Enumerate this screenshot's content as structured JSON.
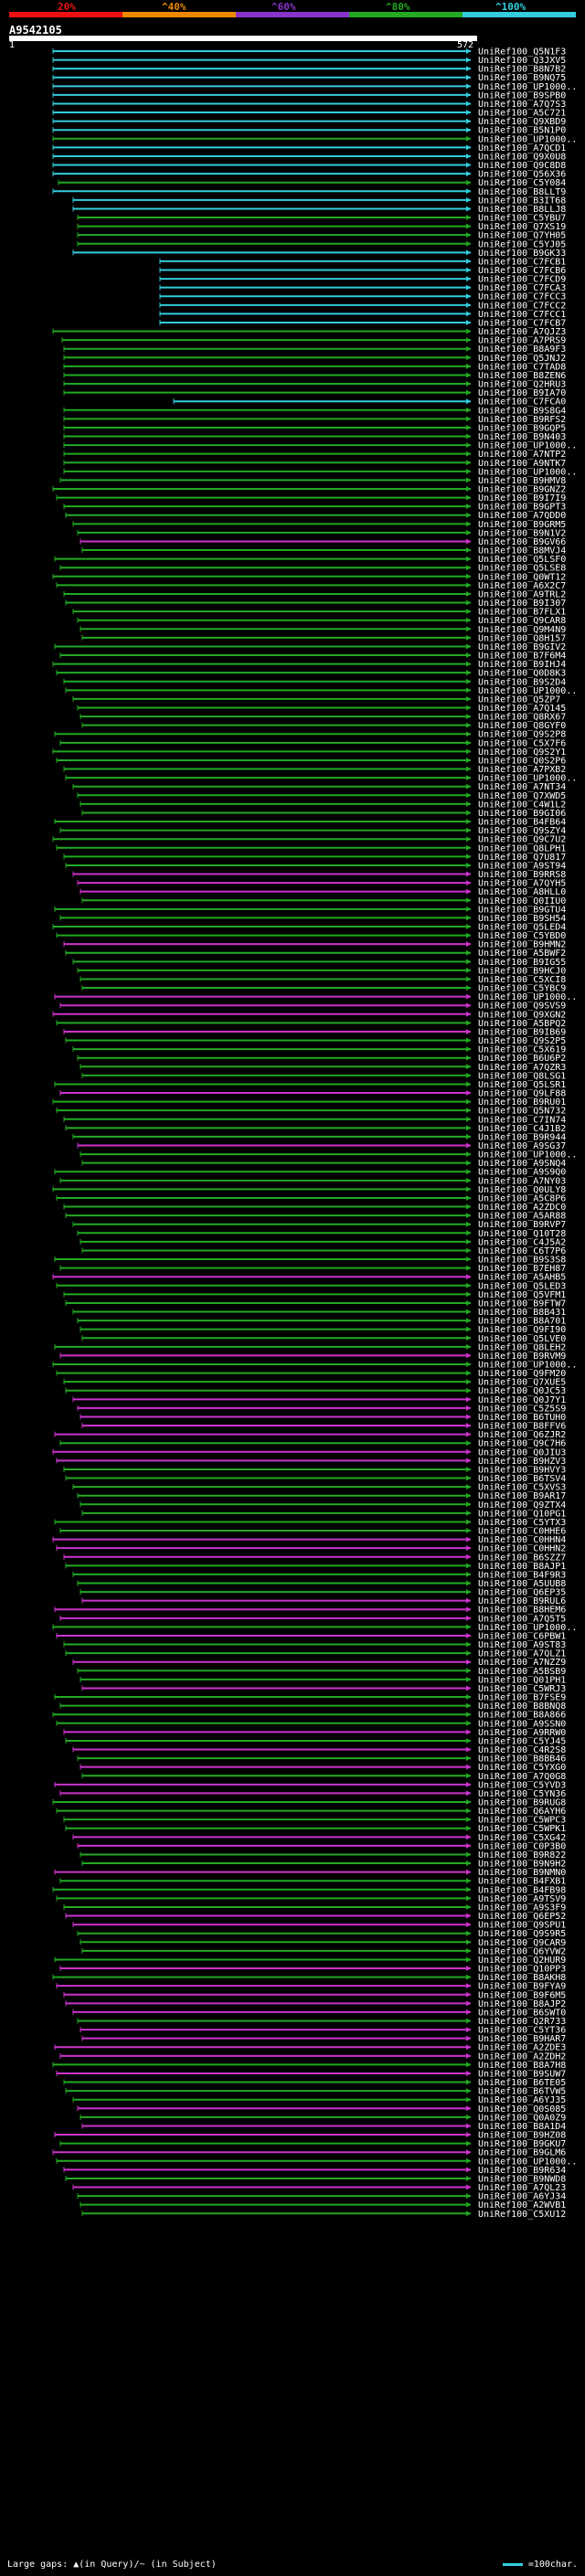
{
  "legend": {
    "labels": [
      "20%",
      "^40%",
      "^60%",
      "^80%",
      "^100%"
    ],
    "colors": [
      "#ee1111",
      "#ee8800",
      "#8833cc",
      "#22aa22",
      "#33ccdd"
    ]
  },
  "query": {
    "id": "A9542105",
    "start": "1",
    "end": "572"
  },
  "footer": {
    "left": "Large gaps: ▲(in Query)/~ (in Subject)",
    "right": "=100char."
  },
  "hit_colors": {
    "c": "#33ccdd",
    "g": "#22aa22",
    "m": "#cc33cc"
  },
  "hits": [
    {
      "label": "UniRef100_Q5N1F3",
      "color": "c"
    },
    {
      "label": "UniRef100_Q3JXV5",
      "color": "c"
    },
    {
      "label": "UniRef100_B8N7B2",
      "color": "c"
    },
    {
      "label": "UniRef100_B9NQ75",
      "color": "c"
    },
    {
      "label": "UniRef100_UP1000..",
      "color": "c"
    },
    {
      "label": "UniRef100_B9SPB0",
      "color": "c"
    },
    {
      "label": "UniRef100_A7Q7S3",
      "color": "c"
    },
    {
      "label": "UniRef100_A5C721",
      "color": "c"
    },
    {
      "label": "UniRef100_Q9XBD9",
      "color": "c"
    },
    {
      "label": "UniRef100_B5N1P0",
      "color": "c"
    },
    {
      "label": "UniRef100_UP1000..",
      "color": "g"
    },
    {
      "label": "UniRef100_A7QCD1",
      "color": "c"
    },
    {
      "label": "UniRef100_Q9X0U8",
      "color": "c"
    },
    {
      "label": "UniRef100_Q9C8D8",
      "color": "c"
    },
    {
      "label": "UniRef100_Q56X36",
      "color": "c"
    },
    {
      "label": "UniRef100_C5Y084",
      "color": "g"
    },
    {
      "label": "UniRef100_B8LLT9",
      "color": "c"
    },
    {
      "label": "UniRef100_B3IT68",
      "color": "c"
    },
    {
      "label": "UniRef100_B8LLJ8",
      "color": "c"
    },
    {
      "label": "UniRef100_C5YBU7",
      "color": "g"
    },
    {
      "label": "UniRef100_Q7XS19",
      "color": "g"
    },
    {
      "label": "UniRef100_Q7YH05",
      "color": "g"
    },
    {
      "label": "UniRef100_C5YJ05",
      "color": "g"
    },
    {
      "label": "UniRef100_B9GK33",
      "color": "c"
    },
    {
      "label": "UniRef100_C7FCB1",
      "color": "c"
    },
    {
      "label": "UniRef100_C7FCB6",
      "color": "c"
    },
    {
      "label": "UniRef100_C7FCD9",
      "color": "c"
    },
    {
      "label": "UniRef100_C7FCA3",
      "color": "c"
    },
    {
      "label": "UniRef100_C7FCC3",
      "color": "c"
    },
    {
      "label": "UniRef100_C7FCC2",
      "color": "c"
    },
    {
      "label": "UniRef100_C7FCC1",
      "color": "c"
    },
    {
      "label": "UniRef100_C7FCB7",
      "color": "c"
    },
    {
      "label": "UniRef100_A7QJZ3",
      "color": "g"
    },
    {
      "label": "UniRef100_A7PRS9",
      "color": "g"
    },
    {
      "label": "UniRef100_B8A9F3",
      "color": "g"
    },
    {
      "label": "UniRef100_Q5JNJ2",
      "color": "g"
    },
    {
      "label": "UniRef100_C7TAD8",
      "color": "g"
    },
    {
      "label": "UniRef100_B8ZEN6",
      "color": "g"
    },
    {
      "label": "UniRef100_Q2HRU3",
      "color": "g"
    },
    {
      "label": "UniRef100_B9IA70",
      "color": "g"
    },
    {
      "label": "UniRef100_C7FCA0",
      "color": "c"
    },
    {
      "label": "UniRef100_B9S8G4",
      "color": "g"
    },
    {
      "label": "UniRef100_B9RFS2",
      "color": "g"
    },
    {
      "label": "UniRef100_B9GQP5",
      "color": "g"
    },
    {
      "label": "UniRef100_B9N403",
      "color": "g"
    },
    {
      "label": "UniRef100_UP1000..",
      "color": "g"
    },
    {
      "label": "UniRef100_A7NTP2",
      "color": "g"
    },
    {
      "label": "UniRef100_A9NTK7",
      "color": "g"
    },
    {
      "label": "UniRef100_UP1000..",
      "color": "g"
    },
    {
      "label": "UniRef100_B9HMV8",
      "color": "g"
    },
    {
      "label": "UniRef100_B9GNZ2",
      "color": "g"
    },
    {
      "label": "UniRef100_B9I7I9",
      "color": "g"
    },
    {
      "label": "UniRef100_B9GPT3",
      "color": "g"
    },
    {
      "label": "UniRef100_A7QDD0",
      "color": "g"
    },
    {
      "label": "UniRef100_B9GRM5",
      "color": "g"
    },
    {
      "label": "UniRef100_B9N1V2",
      "color": "g"
    },
    {
      "label": "UniRef100_B9GV66",
      "color": "m"
    },
    {
      "label": "UniRef100_B8MVJ4",
      "color": "g"
    },
    {
      "label": "UniRef100_Q5LSF0",
      "color": "g"
    },
    {
      "label": "UniRef100_Q5LSE8",
      "color": "g"
    },
    {
      "label": "UniRef100_Q0WT12",
      "color": "g"
    },
    {
      "label": "UniRef100_A6X2C7",
      "color": "g"
    },
    {
      "label": "UniRef100_A9TRL2",
      "color": "g"
    },
    {
      "label": "UniRef100_B9I307",
      "color": "g"
    },
    {
      "label": "UniRef100_B7FLX1",
      "color": "g"
    },
    {
      "label": "UniRef100_Q9CAR8",
      "color": "g"
    },
    {
      "label": "UniRef100_Q9M4N9",
      "color": "g"
    },
    {
      "label": "UniRef100_Q8H157",
      "color": "g"
    },
    {
      "label": "UniRef100_B9GIV2",
      "color": "g"
    },
    {
      "label": "UniRef100_B7F6M4",
      "color": "g"
    },
    {
      "label": "UniRef100_B9IHJ4",
      "color": "g"
    },
    {
      "label": "UniRef100_Q0D8K3",
      "color": "g"
    },
    {
      "label": "UniRef100_B9S2D4",
      "color": "g"
    },
    {
      "label": "UniRef100_UP1000..",
      "color": "g"
    },
    {
      "label": "UniRef100_Q5ZP7",
      "color": "g"
    },
    {
      "label": "UniRef100_A7Q145",
      "color": "g"
    },
    {
      "label": "UniRef100_Q8RX67",
      "color": "g"
    },
    {
      "label": "UniRef100_Q8GYF0",
      "color": "g"
    },
    {
      "label": "UniRef100_Q9S2P8",
      "color": "g"
    },
    {
      "label": "UniRef100_C5X7F6",
      "color": "g"
    },
    {
      "label": "UniRef100_Q9S2Y1",
      "color": "g"
    },
    {
      "label": "UniRef100_Q0S2P6",
      "color": "g"
    },
    {
      "label": "UniRef100_A7PXB2",
      "color": "g"
    },
    {
      "label": "UniRef100_UP1000..",
      "color": "g"
    },
    {
      "label": "UniRef100_A7NT34",
      "color": "g"
    },
    {
      "label": "UniRef100_Q7XWD5",
      "color": "g"
    },
    {
      "label": "UniRef100_C4W1L2",
      "color": "g"
    },
    {
      "label": "UniRef100_B9GI06",
      "color": "g"
    },
    {
      "label": "UniRef100_B4FB64",
      "color": "g"
    },
    {
      "label": "UniRef100_Q9SZY4",
      "color": "g"
    },
    {
      "label": "UniRef100_Q9C7U2",
      "color": "g"
    },
    {
      "label": "UniRef100_Q8LPH1",
      "color": "g"
    },
    {
      "label": "UniRef100_Q7U817",
      "color": "g"
    },
    {
      "label": "UniRef100_A9ST94",
      "color": "g"
    },
    {
      "label": "UniRef100_B9RRS8",
      "color": "m"
    },
    {
      "label": "UniRef100_A7QYH5",
      "color": "m"
    },
    {
      "label": "UniRef100_A8HLL0",
      "color": "m"
    },
    {
      "label": "UniRef100_Q0IIU0",
      "color": "g"
    },
    {
      "label": "UniRef100_B9GTU4",
      "color": "g"
    },
    {
      "label": "UniRef100_B9SH54",
      "color": "g"
    },
    {
      "label": "UniRef100_Q5LED4",
      "color": "g"
    },
    {
      "label": "UniRef100_C5YBD0",
      "color": "g"
    },
    {
      "label": "UniRef100_B9HMN2",
      "color": "m"
    },
    {
      "label": "UniRef100_A5BWF2",
      "color": "g"
    },
    {
      "label": "UniRef100_B9IG55",
      "color": "g"
    },
    {
      "label": "UniRef100_B9HCJ0",
      "color": "g"
    },
    {
      "label": "UniRef100_C5XCI8",
      "color": "g"
    },
    {
      "label": "UniRef100_C5YBC9",
      "color": "g"
    },
    {
      "label": "UniRef100_UP1000..",
      "color": "m"
    },
    {
      "label": "UniRef100_Q9SVS9",
      "color": "m"
    },
    {
      "label": "UniRef100_Q9XGN2",
      "color": "m"
    },
    {
      "label": "UniRef100_A5BPQ2",
      "color": "g"
    },
    {
      "label": "UniRef100_B9IB69",
      "color": "m"
    },
    {
      "label": "UniRef100_Q9S2P5",
      "color": "g"
    },
    {
      "label": "UniRef100_C5X619",
      "color": "g"
    },
    {
      "label": "UniRef100_B6U6P2",
      "color": "g"
    },
    {
      "label": "UniRef100_A7QZR3",
      "color": "g"
    },
    {
      "label": "UniRef100_Q8LSG1",
      "color": "g"
    },
    {
      "label": "UniRef100_Q5LSR1",
      "color": "g"
    },
    {
      "label": "UniRef100_Q9LF88",
      "color": "m"
    },
    {
      "label": "UniRef100_B9RU01",
      "color": "g"
    },
    {
      "label": "UniRef100_Q5N732",
      "color": "g"
    },
    {
      "label": "UniRef100_C7IN74",
      "color": "g"
    },
    {
      "label": "UniRef100_C4J1B2",
      "color": "g"
    },
    {
      "label": "UniRef100_B9R944",
      "color": "g"
    },
    {
      "label": "UniRef100_A9SG37",
      "color": "m"
    },
    {
      "label": "UniRef100_UP1000..",
      "color": "g"
    },
    {
      "label": "UniRef100_A9SNQ4",
      "color": "g"
    },
    {
      "label": "UniRef100_A9S9Q0",
      "color": "g"
    },
    {
      "label": "UniRef100_A7NY03",
      "color": "g"
    },
    {
      "label": "UniRef100_Q0ULY8",
      "color": "g"
    },
    {
      "label": "UniRef100_A5C8P6",
      "color": "g"
    },
    {
      "label": "UniRef100_A2ZDC0",
      "color": "g"
    },
    {
      "label": "UniRef100_A5AR88",
      "color": "g"
    },
    {
      "label": "UniRef100_B9RVP7",
      "color": "g"
    },
    {
      "label": "UniRef100_Q10T28",
      "color": "g"
    },
    {
      "label": "UniRef100_C4J5A2",
      "color": "g"
    },
    {
      "label": "UniRef100_C6T7P6",
      "color": "g"
    },
    {
      "label": "UniRef100_B9S3S8",
      "color": "g"
    },
    {
      "label": "UniRef100_B7EH87",
      "color": "g"
    },
    {
      "label": "UniRef100_A5AHB5",
      "color": "m"
    },
    {
      "label": "UniRef100_Q5LED3",
      "color": "g"
    },
    {
      "label": "UniRef100_Q5VFM1",
      "color": "g"
    },
    {
      "label": "UniRef100_B9FTW7",
      "color": "g"
    },
    {
      "label": "UniRef100_B8B431",
      "color": "g"
    },
    {
      "label": "UniRef100_B8A701",
      "color": "g"
    },
    {
      "label": "UniRef100_Q9FI90",
      "color": "g"
    },
    {
      "label": "UniRef100_Q5LVE0",
      "color": "g"
    },
    {
      "label": "UniRef100_Q8LEH2",
      "color": "g"
    },
    {
      "label": "UniRef100_B9RVM9",
      "color": "m"
    },
    {
      "label": "UniRef100_UP1000..",
      "color": "g"
    },
    {
      "label": "UniRef100_Q9FM20",
      "color": "g"
    },
    {
      "label": "UniRef100_Q7XUE5",
      "color": "g"
    },
    {
      "label": "UniRef100_Q0JC53",
      "color": "g"
    },
    {
      "label": "UniRef100_Q0J7Y1",
      "color": "m"
    },
    {
      "label": "UniRef100_C5Z5S9",
      "color": "m"
    },
    {
      "label": "UniRef100_B6TUH0",
      "color": "m"
    },
    {
      "label": "UniRef100_B8FFV6",
      "color": "m"
    },
    {
      "label": "UniRef100_Q6ZJR2",
      "color": "m"
    },
    {
      "label": "UniRef100_Q9C7H6",
      "color": "g"
    },
    {
      "label": "UniRef100_Q0JIU3",
      "color": "m"
    },
    {
      "label": "UniRef100_B9HZV3",
      "color": "m"
    },
    {
      "label": "UniRef100_B9HVY3",
      "color": "g"
    },
    {
      "label": "UniRef100_B6TSV4",
      "color": "g"
    },
    {
      "label": "UniRef100_C5XVS3",
      "color": "g"
    },
    {
      "label": "UniRef100_B9AR17",
      "color": "g"
    },
    {
      "label": "UniRef100_Q9ZTX4",
      "color": "g"
    },
    {
      "label": "UniRef100_Q10PG1",
      "color": "g"
    },
    {
      "label": "UniRef100_C5YTX3",
      "color": "g"
    },
    {
      "label": "UniRef100_C0HHE6",
      "color": "g"
    },
    {
      "label": "UniRef100_C0HHN4",
      "color": "m"
    },
    {
      "label": "UniRef100_C0HHN2",
      "color": "m"
    },
    {
      "label": "UniRef100_B6SZZ7",
      "color": "m"
    },
    {
      "label": "UniRef100_B8AJP1",
      "color": "g"
    },
    {
      "label": "UniRef100_B4F9R3",
      "color": "g"
    },
    {
      "label": "UniRef100_A5UUB8",
      "color": "g"
    },
    {
      "label": "UniRef100_Q6EP35",
      "color": "g"
    },
    {
      "label": "UniRef100_B9RUL6",
      "color": "m"
    },
    {
      "label": "UniRef100_B8HEM6",
      "color": "m"
    },
    {
      "label": "UniRef100_A7Q5T5",
      "color": "m"
    },
    {
      "label": "UniRef100_UP1000..",
      "color": "g"
    },
    {
      "label": "UniRef100_C6PBW1",
      "color": "m"
    },
    {
      "label": "UniRef100_A9ST83",
      "color": "g"
    },
    {
      "label": "UniRef100_A7QLZ1",
      "color": "g"
    },
    {
      "label": "UniRef100_A7NZZ9",
      "color": "m"
    },
    {
      "label": "UniRef100_A5BSB9",
      "color": "g"
    },
    {
      "label": "UniRef100_Q01PH1",
      "color": "g"
    },
    {
      "label": "UniRef100_C5WRJ3",
      "color": "m"
    },
    {
      "label": "UniRef100_B7FSE9",
      "color": "g"
    },
    {
      "label": "UniRef100_B8BNQ8",
      "color": "g"
    },
    {
      "label": "UniRef100_B8A866",
      "color": "g"
    },
    {
      "label": "UniRef100_A9SSN0",
      "color": "g"
    },
    {
      "label": "UniRef100_A9RRW0",
      "color": "m"
    },
    {
      "label": "UniRef100_C5YJ45",
      "color": "g"
    },
    {
      "label": "UniRef100_C4R2S8",
      "color": "m"
    },
    {
      "label": "UniRef100_B8BB46",
      "color": "g"
    },
    {
      "label": "UniRef100_C5YXG0",
      "color": "m"
    },
    {
      "label": "UniRef100_A7Q0G8",
      "color": "g"
    },
    {
      "label": "UniRef100_C5YVD3",
      "color": "m"
    },
    {
      "label": "UniRef100_C5YN36",
      "color": "m"
    },
    {
      "label": "UniRef100_B9RUG8",
      "color": "g"
    },
    {
      "label": "UniRef100_Q6AYH6",
      "color": "g"
    },
    {
      "label": "UniRef100_C5WPC3",
      "color": "g"
    },
    {
      "label": "UniRef100_C5WPK1",
      "color": "g"
    },
    {
      "label": "UniRef100_C5XG42",
      "color": "m"
    },
    {
      "label": "UniRef100_C0P3B0",
      "color": "m"
    },
    {
      "label": "UniRef100_B9R822",
      "color": "g"
    },
    {
      "label": "UniRef100_B9N9H2",
      "color": "g"
    },
    {
      "label": "UniRef100_B9NMN0",
      "color": "m"
    },
    {
      "label": "UniRef100_B4FXB1",
      "color": "g"
    },
    {
      "label": "UniRef100_B4FB98",
      "color": "g"
    },
    {
      "label": "UniRef100_A9TSV9",
      "color": "g"
    },
    {
      "label": "UniRef100_A9S3F9",
      "color": "g"
    },
    {
      "label": "UniRef100_Q6EP52",
      "color": "m"
    },
    {
      "label": "UniRef100_Q9SPU1",
      "color": "m"
    },
    {
      "label": "UniRef100_Q9S9R5",
      "color": "g"
    },
    {
      "label": "UniRef100_Q9CAR9",
      "color": "g"
    },
    {
      "label": "UniRef100_Q6YVW2",
      "color": "g"
    },
    {
      "label": "UniRef100_Q2HUR9",
      "color": "g"
    },
    {
      "label": "UniRef100_Q10PP3",
      "color": "m"
    },
    {
      "label": "UniRef100_B8AKH8",
      "color": "g"
    },
    {
      "label": "UniRef100_B9FYA9",
      "color": "m"
    },
    {
      "label": "UniRef100_B9F6M5",
      "color": "m"
    },
    {
      "label": "UniRef100_B8AJP2",
      "color": "m"
    },
    {
      "label": "UniRef100_B6SWT0",
      "color": "m"
    },
    {
      "label": "UniRef100_Q2R733",
      "color": "g"
    },
    {
      "label": "UniRef100_C5YT36",
      "color": "m"
    },
    {
      "label": "UniRef100_B9HAR7",
      "color": "m"
    },
    {
      "label": "UniRef100_A2ZDE3",
      "color": "m"
    },
    {
      "label": "UniRef100_A2ZDH2",
      "color": "m"
    },
    {
      "label": "UniRef100_B8A7H8",
      "color": "g"
    },
    {
      "label": "UniRef100_B9SUW7",
      "color": "m"
    },
    {
      "label": "UniRef100_B6TE05",
      "color": "g"
    },
    {
      "label": "UniRef100_B6TVW5",
      "color": "g"
    },
    {
      "label": "UniRef100_A6YJ35",
      "color": "g"
    },
    {
      "label": "UniRef100_Q0S085",
      "color": "m"
    },
    {
      "label": "UniRef100_Q0A0Z9",
      "color": "g"
    },
    {
      "label": "UniRef100_B8A1D4",
      "color": "m"
    },
    {
      "label": "UniRef100_B9HZ08",
      "color": "m"
    },
    {
      "label": "UniRef100_B9GKU7",
      "color": "g"
    },
    {
      "label": "UniRef100_B9GLM6",
      "color": "m"
    },
    {
      "label": "UniRef100_UP1000..",
      "color": "g"
    },
    {
      "label": "UniRef100_B9R634",
      "color": "m"
    },
    {
      "label": "UniRef100_B9NWD8",
      "color": "g"
    },
    {
      "label": "UniRef100_A7QL23",
      "color": "m"
    },
    {
      "label": "UniRef100_A6YJ34",
      "color": "g"
    },
    {
      "label": "UniRef100_A2WVB1",
      "color": "g"
    },
    {
      "label": "UniRef100_C5XU12",
      "color": "g"
    }
  ]
}
